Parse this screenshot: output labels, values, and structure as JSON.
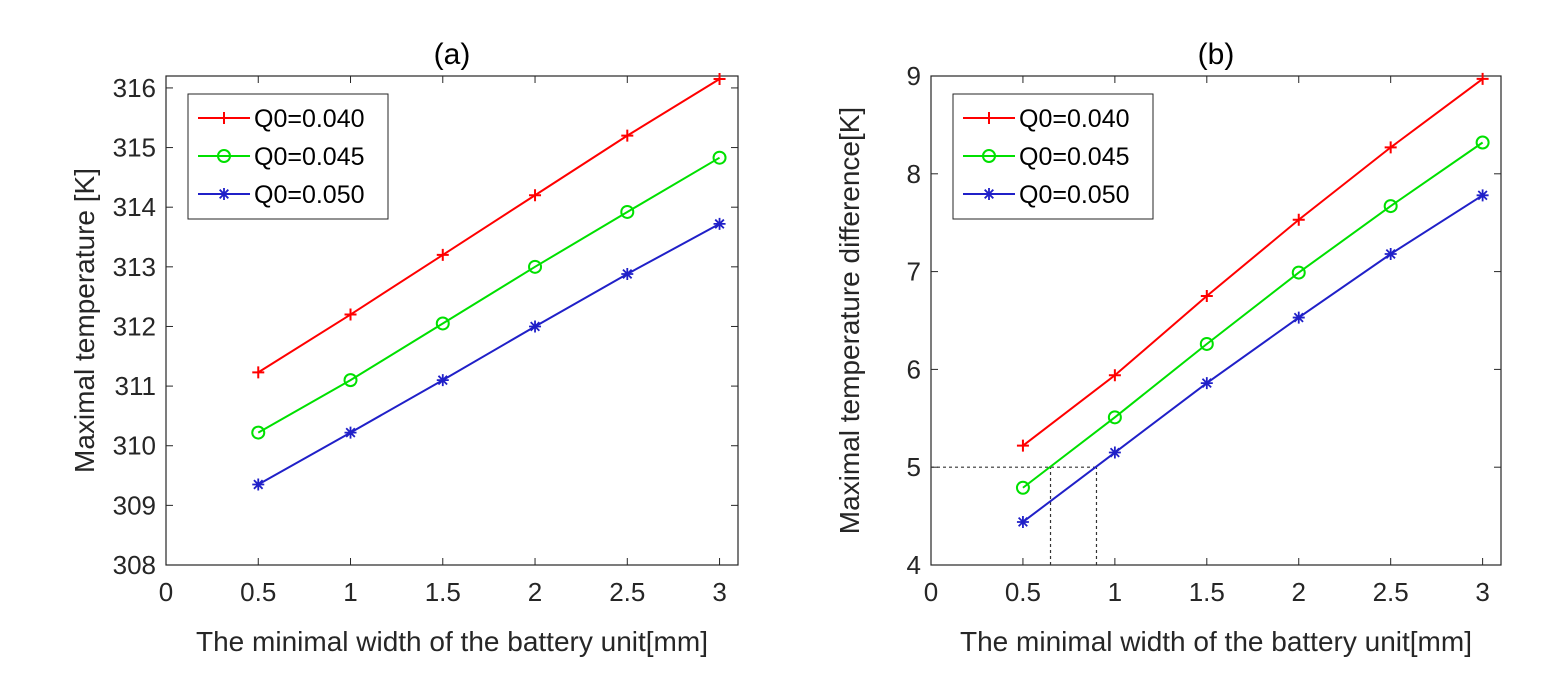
{
  "chart_data": [
    {
      "type": "line",
      "title": "(a)",
      "xlabel": "The minimal width of the battery unit[mm]",
      "ylabel": "Maximal temperature [K]",
      "xlim": [
        0,
        3.1
      ],
      "ylim": [
        308,
        316.2
      ],
      "x_ticks": [
        "0",
        "0.5",
        "1",
        "1.5",
        "2",
        "2.5",
        "3"
      ],
      "y_ticks": [
        "308",
        "309",
        "310",
        "311",
        "312",
        "313",
        "314",
        "315",
        "316"
      ],
      "grid": false,
      "legend_position": "top-left",
      "x": [
        0.5,
        1,
        1.5,
        2,
        2.5,
        3
      ],
      "series": [
        {
          "name": "Q0=0.040",
          "color": "#ff0000",
          "marker": "plus",
          "values": [
            311.23,
            312.2,
            313.2,
            314.2,
            315.2,
            316.15
          ]
        },
        {
          "name": "Q0=0.045",
          "color": "#00e000",
          "marker": "circle",
          "values": [
            310.22,
            311.1,
            312.05,
            313.0,
            313.92,
            314.83
          ]
        },
        {
          "name": "Q0=0.050",
          "color": "#2020c8",
          "marker": "asterisk",
          "values": [
            309.35,
            310.22,
            311.1,
            312.0,
            312.88,
            313.72
          ]
        }
      ]
    },
    {
      "type": "line",
      "title": "(b)",
      "xlabel": "The minimal width of the battery unit[mm]",
      "ylabel": "Maximal temperature difference[K]",
      "xlim": [
        0,
        3.1
      ],
      "ylim": [
        4,
        9
      ],
      "x_ticks": [
        "0",
        "0.5",
        "1",
        "1.5",
        "2",
        "2.5",
        "3"
      ],
      "y_ticks": [
        "4",
        "5",
        "6",
        "7",
        "8",
        "9"
      ],
      "grid": false,
      "legend_position": "top-left",
      "x": [
        0.5,
        1,
        1.5,
        2,
        2.5,
        3
      ],
      "series": [
        {
          "name": "Q0=0.040",
          "color": "#ff0000",
          "marker": "plus",
          "values": [
            5.22,
            5.94,
            6.75,
            7.53,
            8.27,
            8.97
          ]
        },
        {
          "name": "Q0=0.045",
          "color": "#00e000",
          "marker": "circle",
          "values": [
            4.79,
            5.51,
            6.26,
            6.99,
            7.67,
            8.32
          ]
        },
        {
          "name": "Q0=0.050",
          "color": "#2020c8",
          "marker": "asterisk",
          "values": [
            4.44,
            5.15,
            5.86,
            6.53,
            7.18,
            7.78
          ]
        }
      ],
      "reference_lines": [
        {
          "y": 5,
          "x_from": 0,
          "x_to": 0.9
        },
        {
          "x": 0.65,
          "y_from": 4,
          "y_to": 5
        },
        {
          "x": 0.9,
          "y_from": 4,
          "y_to": 5
        }
      ]
    }
  ]
}
